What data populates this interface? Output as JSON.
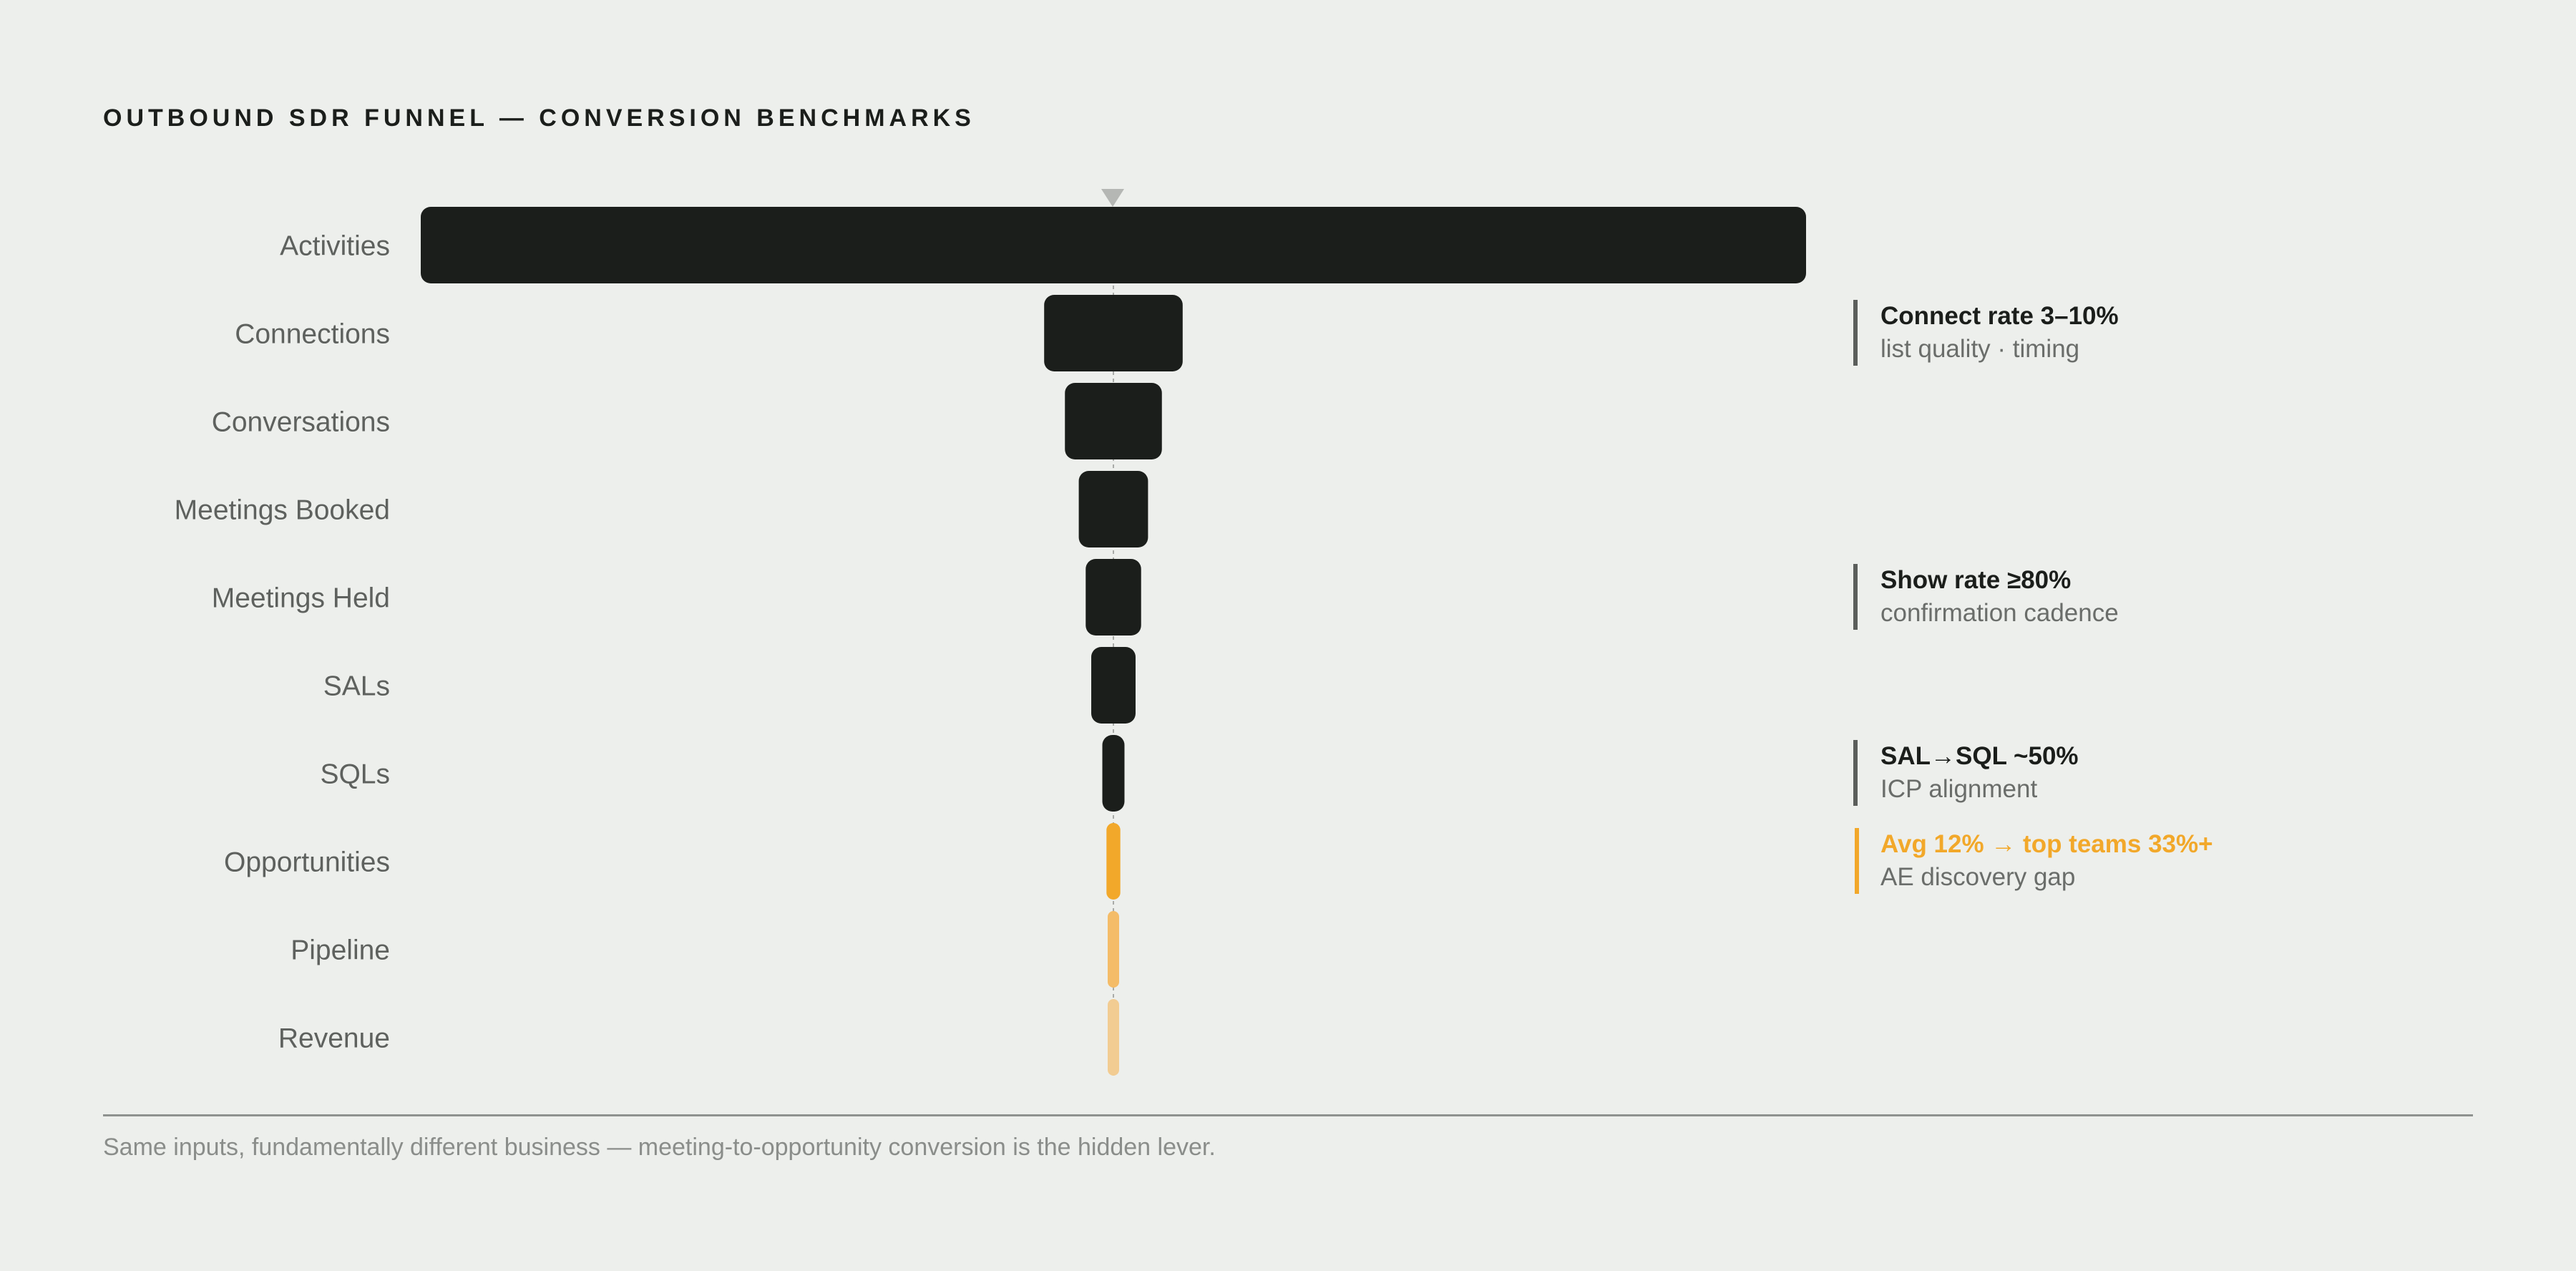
{
  "title": "OUTBOUND SDR FUNNEL — CONVERSION BENCHMARKS",
  "footer": "Same inputs, fundamentally different business — meeting-to-opportunity conversion is the hidden lever.",
  "chart_data": {
    "type": "bar",
    "orientation": "centered-funnel",
    "categories": [
      "Activities",
      "Connections",
      "Conversations",
      "Meetings Booked",
      "Meetings Held",
      "SALs",
      "SQLs",
      "Opportunities",
      "Pipeline",
      "Revenue"
    ],
    "values": [
      1000,
      100,
      70,
      50,
      40,
      32,
      16,
      10,
      8,
      6
    ],
    "value_note": "relative widths estimated from bar lengths (Activities = 1000)",
    "highlight_categories": [
      "Opportunities",
      "Pipeline",
      "Revenue"
    ],
    "grid": false,
    "legend": "none"
  },
  "annotations": [
    {
      "stage": "Connections",
      "title": "Connect rate 3–10%",
      "subtitle": "list quality · timing",
      "accent": false
    },
    {
      "stage": "Meetings Held",
      "title": "Show rate ≥80%",
      "subtitle": "confirmation cadence",
      "accent": false
    },
    {
      "stage": "SQLs",
      "title": "SAL→SQL ~50%",
      "subtitle": "ICP alignment",
      "accent": false
    },
    {
      "stage": "Opportunities",
      "title": "Avg 12% → top teams 33%+",
      "subtitle": "AE discovery gap",
      "accent": true
    }
  ],
  "colors": {
    "background": "#edefec",
    "bar": "#1b1e1b",
    "accent": "#f2a82a",
    "accent_mid": "#f4bc68",
    "accent_light": "#f2cc92",
    "label": "#5e615e",
    "axis_marker": "#b5b7b4"
  }
}
